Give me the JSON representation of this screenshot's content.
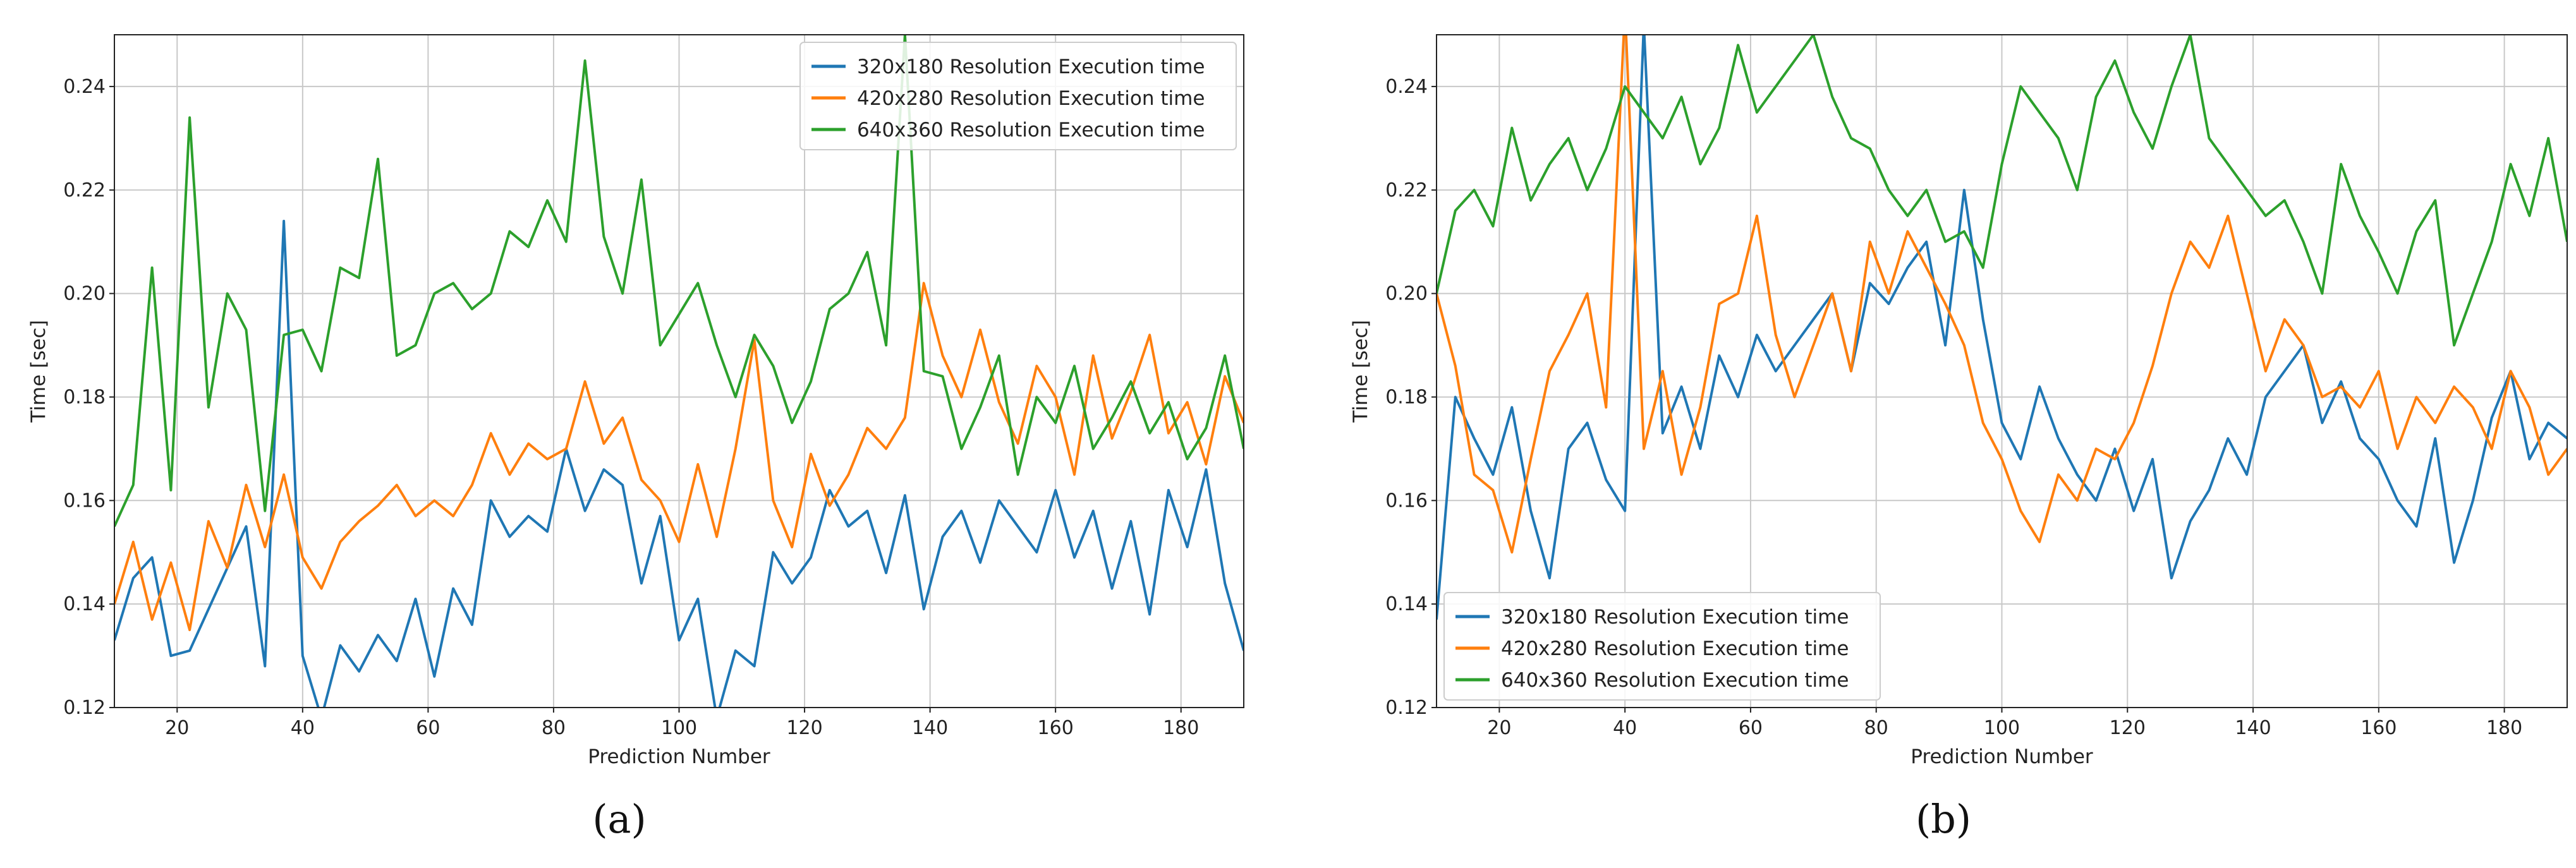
{
  "chart_data": [
    {
      "type": "line",
      "panel_label": "(a)",
      "xlabel": "Prediction Number",
      "ylabel": "Time [sec]",
      "xlim": [
        10,
        190
      ],
      "ylim": [
        0.12,
        0.25
      ],
      "xticks": [
        "20",
        "40",
        "60",
        "80",
        "100",
        "120",
        "140",
        "160",
        "180"
      ],
      "yticks": [
        "0.12",
        "0.14",
        "0.16",
        "0.18",
        "0.20",
        "0.22",
        "0.24"
      ],
      "grid": true,
      "legend_position": "top-right",
      "series": [
        {
          "name": "320x180 Resolution Execution time",
          "color": "#1f77b4",
          "x": [
            10,
            13,
            16,
            19,
            22,
            25,
            28,
            31,
            34,
            37,
            40,
            43,
            46,
            49,
            52,
            55,
            58,
            61,
            64,
            67,
            70,
            73,
            76,
            79,
            82,
            85,
            88,
            91,
            94,
            97,
            100,
            103,
            106,
            109,
            112,
            115,
            118,
            121,
            124,
            127,
            130,
            133,
            136,
            139,
            142,
            145,
            148,
            151,
            154,
            157,
            160,
            163,
            166,
            169,
            172,
            175,
            178,
            181,
            184,
            187,
            190
          ],
          "values": [
            0.133,
            0.145,
            0.149,
            0.13,
            0.131,
            0.139,
            0.147,
            0.155,
            0.128,
            0.214,
            0.13,
            0.118,
            0.132,
            0.127,
            0.134,
            0.129,
            0.141,
            0.126,
            0.143,
            0.136,
            0.16,
            0.153,
            0.157,
            0.154,
            0.17,
            0.158,
            0.166,
            0.163,
            0.144,
            0.157,
            0.133,
            0.141,
            0.118,
            0.131,
            0.128,
            0.15,
            0.144,
            0.149,
            0.162,
            0.155,
            0.158,
            0.146,
            0.161,
            0.139,
            0.153,
            0.158,
            0.148,
            0.16,
            0.155,
            0.15,
            0.162,
            0.149,
            0.158,
            0.143,
            0.156,
            0.138,
            0.162,
            0.151,
            0.166,
            0.144,
            0.131
          ]
        },
        {
          "name": "420x280 Resolution Execution time",
          "color": "#ff7f0e",
          "x": [
            10,
            13,
            16,
            19,
            22,
            25,
            28,
            31,
            34,
            37,
            40,
            43,
            46,
            49,
            52,
            55,
            58,
            61,
            64,
            67,
            70,
            73,
            76,
            79,
            82,
            85,
            88,
            91,
            94,
            97,
            100,
            103,
            106,
            109,
            112,
            115,
            118,
            121,
            124,
            127,
            130,
            133,
            136,
            139,
            142,
            145,
            148,
            151,
            154,
            157,
            160,
            163,
            166,
            169,
            172,
            175,
            178,
            181,
            184,
            187,
            190
          ],
          "values": [
            0.14,
            0.152,
            0.137,
            0.148,
            0.135,
            0.156,
            0.147,
            0.163,
            0.151,
            0.165,
            0.149,
            0.143,
            0.152,
            0.156,
            0.159,
            0.163,
            0.157,
            0.16,
            0.157,
            0.163,
            0.173,
            0.165,
            0.171,
            0.168,
            0.17,
            0.183,
            0.171,
            0.176,
            0.164,
            0.16,
            0.152,
            0.167,
            0.153,
            0.17,
            0.191,
            0.16,
            0.151,
            0.169,
            0.159,
            0.165,
            0.174,
            0.17,
            0.176,
            0.202,
            0.188,
            0.18,
            0.193,
            0.179,
            0.171,
            0.186,
            0.18,
            0.165,
            0.188,
            0.172,
            0.181,
            0.192,
            0.173,
            0.179,
            0.167,
            0.184,
            0.175
          ]
        },
        {
          "name": "640x360 Resolution Execution time",
          "color": "#2ca02c",
          "x": [
            10,
            13,
            16,
            19,
            22,
            25,
            28,
            31,
            34,
            37,
            40,
            43,
            46,
            49,
            52,
            55,
            58,
            61,
            64,
            67,
            70,
            73,
            76,
            79,
            82,
            85,
            88,
            91,
            94,
            97,
            100,
            103,
            106,
            109,
            112,
            115,
            118,
            121,
            124,
            127,
            130,
            133,
            136,
            139,
            142,
            145,
            148,
            151,
            154,
            157,
            160,
            163,
            166,
            169,
            172,
            175,
            178,
            181,
            184,
            187,
            190
          ],
          "values": [
            0.155,
            0.163,
            0.205,
            0.162,
            0.234,
            0.178,
            0.2,
            0.193,
            0.158,
            0.192,
            0.193,
            0.185,
            0.205,
            0.203,
            0.226,
            0.188,
            0.19,
            0.2,
            0.202,
            0.197,
            0.2,
            0.212,
            0.209,
            0.218,
            0.21,
            0.245,
            0.211,
            0.2,
            0.222,
            0.19,
            0.196,
            0.202,
            0.19,
            0.18,
            0.192,
            0.186,
            0.175,
            0.183,
            0.197,
            0.2,
            0.208,
            0.19,
            0.25,
            0.185,
            0.184,
            0.17,
            0.178,
            0.188,
            0.165,
            0.18,
            0.175,
            0.186,
            0.17,
            0.176,
            0.183,
            0.173,
            0.179,
            0.168,
            0.174,
            0.188,
            0.17
          ]
        }
      ]
    },
    {
      "type": "line",
      "panel_label": "(b)",
      "xlabel": "Prediction Number",
      "ylabel": "Time [sec]",
      "xlim": [
        10,
        190
      ],
      "ylim": [
        0.12,
        0.25
      ],
      "xticks": [
        "20",
        "40",
        "60",
        "80",
        "100",
        "120",
        "140",
        "160",
        "180"
      ],
      "yticks": [
        "0.12",
        "0.14",
        "0.16",
        "0.18",
        "0.20",
        "0.22",
        "0.24"
      ],
      "grid": true,
      "legend_position": "bottom-left",
      "series": [
        {
          "name": "320x180 Resolution Execution time",
          "color": "#1f77b4",
          "x": [
            10,
            13,
            16,
            19,
            22,
            25,
            28,
            31,
            34,
            37,
            40,
            43,
            46,
            49,
            52,
            55,
            58,
            61,
            64,
            67,
            70,
            73,
            76,
            79,
            82,
            85,
            88,
            91,
            94,
            97,
            100,
            103,
            106,
            109,
            112,
            115,
            118,
            121,
            124,
            127,
            130,
            133,
            136,
            139,
            142,
            145,
            148,
            151,
            154,
            157,
            160,
            163,
            166,
            169,
            172,
            175,
            178,
            181,
            184,
            187,
            190
          ],
          "values": [
            0.137,
            0.18,
            0.172,
            0.165,
            0.178,
            0.158,
            0.145,
            0.17,
            0.175,
            0.164,
            0.158,
            0.252,
            0.173,
            0.182,
            0.17,
            0.188,
            0.18,
            0.192,
            0.185,
            0.19,
            0.195,
            0.2,
            0.185,
            0.202,
            0.198,
            0.205,
            0.21,
            0.19,
            0.22,
            0.195,
            0.175,
            0.168,
            0.182,
            0.172,
            0.165,
            0.16,
            0.17,
            0.158,
            0.168,
            0.145,
            0.156,
            0.162,
            0.172,
            0.165,
            0.18,
            0.185,
            0.19,
            0.175,
            0.183,
            0.172,
            0.168,
            0.16,
            0.155,
            0.172,
            0.148,
            0.16,
            0.176,
            0.185,
            0.168,
            0.175,
            0.172
          ]
        },
        {
          "name": "420x280 Resolution Execution time",
          "color": "#ff7f0e",
          "x": [
            10,
            13,
            16,
            19,
            22,
            25,
            28,
            31,
            34,
            37,
            40,
            43,
            46,
            49,
            52,
            55,
            58,
            61,
            64,
            67,
            70,
            73,
            76,
            79,
            82,
            85,
            88,
            91,
            94,
            97,
            100,
            103,
            106,
            109,
            112,
            115,
            118,
            121,
            124,
            127,
            130,
            133,
            136,
            139,
            142,
            145,
            148,
            151,
            154,
            157,
            160,
            163,
            166,
            169,
            172,
            175,
            178,
            181,
            184,
            187,
            190
          ],
          "values": [
            0.2,
            0.186,
            0.165,
            0.162,
            0.15,
            0.168,
            0.185,
            0.192,
            0.2,
            0.178,
            0.255,
            0.17,
            0.185,
            0.165,
            0.178,
            0.198,
            0.2,
            0.215,
            0.192,
            0.18,
            0.19,
            0.2,
            0.185,
            0.21,
            0.2,
            0.212,
            0.205,
            0.198,
            0.19,
            0.175,
            0.168,
            0.158,
            0.152,
            0.165,
            0.16,
            0.17,
            0.168,
            0.175,
            0.186,
            0.2,
            0.21,
            0.205,
            0.215,
            0.2,
            0.185,
            0.195,
            0.19,
            0.18,
            0.182,
            0.178,
            0.185,
            0.17,
            0.18,
            0.175,
            0.182,
            0.178,
            0.17,
            0.185,
            0.178,
            0.165,
            0.17
          ]
        },
        {
          "name": "640x360 Resolution Execution time",
          "color": "#2ca02c",
          "x": [
            10,
            13,
            16,
            19,
            22,
            25,
            28,
            31,
            34,
            37,
            40,
            43,
            46,
            49,
            52,
            55,
            58,
            61,
            64,
            67,
            70,
            73,
            76,
            79,
            82,
            85,
            88,
            91,
            94,
            97,
            100,
            103,
            106,
            109,
            112,
            115,
            118,
            121,
            124,
            127,
            130,
            133,
            136,
            139,
            142,
            145,
            148,
            151,
            154,
            157,
            160,
            163,
            166,
            169,
            172,
            175,
            178,
            181,
            184,
            187,
            190
          ],
          "values": [
            0.2,
            0.216,
            0.22,
            0.213,
            0.232,
            0.218,
            0.225,
            0.23,
            0.22,
            0.228,
            0.24,
            0.235,
            0.23,
            0.238,
            0.225,
            0.232,
            0.248,
            0.235,
            0.24,
            0.245,
            0.25,
            0.238,
            0.23,
            0.228,
            0.22,
            0.215,
            0.22,
            0.21,
            0.212,
            0.205,
            0.225,
            0.24,
            0.235,
            0.23,
            0.22,
            0.238,
            0.245,
            0.235,
            0.228,
            0.24,
            0.25,
            0.23,
            0.225,
            0.22,
            0.215,
            0.218,
            0.21,
            0.2,
            0.225,
            0.215,
            0.208,
            0.2,
            0.212,
            0.218,
            0.19,
            0.2,
            0.21,
            0.225,
            0.215,
            0.23,
            0.21
          ]
        }
      ]
    }
  ]
}
